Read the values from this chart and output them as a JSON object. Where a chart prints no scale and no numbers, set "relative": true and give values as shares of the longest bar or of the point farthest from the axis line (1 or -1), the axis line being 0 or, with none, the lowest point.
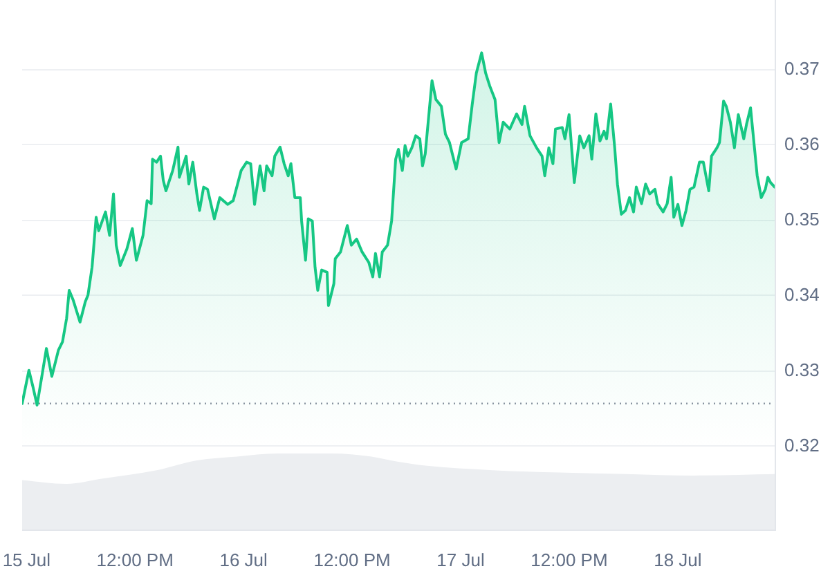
{
  "chart_data": [
    {
      "type": "area",
      "color": "#16c784",
      "marker": "none",
      "line_style": "solid",
      "grid": "y",
      "tick_labels": "y",
      "xlim": [
        "--07-14T23:31",
        "--07-18T10:43"
      ],
      "ylim": [
        0.309,
        0.3792
      ],
      "yticks": [
        0.32,
        0.33,
        0.34,
        0.35,
        0.36,
        0.37
      ],
      "ref_lines": [
        {
          "axis": "y",
          "value": 0.3257,
          "line_style": "dotted",
          "color": "#8b93a1"
        }
      ],
      "x": [
        "--07-14T23:31",
        "--07-15T00:16",
        "--07-15T00:43",
        "--07-15T01:10",
        "--07-15T01:45",
        "--07-15T02:12",
        "--07-15T02:48",
        "--07-15T03:32",
        "--07-15T03:59",
        "--07-15T04:26",
        "--07-15T04:43",
        "--07-15T05:10",
        "--07-15T05:55",
        "--07-15T06:30",
        "--07-15T06:48",
        "--07-15T07:15",
        "--07-15T07:42",
        "--07-15T07:59",
        "--07-15T08:44",
        "--07-15T09:11",
        "--07-15T09:37",
        "--07-15T09:55",
        "--07-15T10:22",
        "--07-15T11:06",
        "--07-15T11:42",
        "--07-15T12:09",
        "--07-15T12:53",
        "--07-15T13:20",
        "--07-15T13:47",
        "--07-15T13:56",
        "--07-15T14:23",
        "--07-15T14:49",
        "--07-15T15:07",
        "--07-15T15:25",
        "--07-15T16:10",
        "--07-15T16:45",
        "--07-15T16:54",
        "--07-15T17:39",
        "--07-15T17:57",
        "--07-15T18:23",
        "--07-15T18:50",
        "--07-15T19:08",
        "--07-15T19:35",
        "--07-15T20:01",
        "--07-15T20:46",
        "--07-15T21:22",
        "--07-15T22:15",
        "--07-15T22:51",
        "--07-15T23:44",
        "--07-16T00:20",
        "--07-16T00:47",
        "--07-16T01:13",
        "--07-16T01:49",
        "--07-16T02:16",
        "--07-16T02:33",
        "--07-16T03:09",
        "--07-16T03:27",
        "--07-16T04:02",
        "--07-16T04:29",
        "--07-16T04:56",
        "--07-16T05:14",
        "--07-16T05:40",
        "--07-16T06:16",
        "--07-16T06:25",
        "--07-16T06:51",
        "--07-16T07:09",
        "--07-16T07:36",
        "--07-16T07:54",
        "--07-16T08:12",
        "--07-16T08:38",
        "--07-16T09:14",
        "--07-16T09:23",
        "--07-16T09:59",
        "--07-16T10:08",
        "--07-16T10:43",
        "--07-16T11:28",
        "--07-16T11:55",
        "--07-16T12:30",
        "--07-16T13:06",
        "--07-16T13:51",
        "--07-16T14:17",
        "--07-16T14:35",
        "--07-16T15:02",
        "--07-16T15:20",
        "--07-16T15:55",
        "--07-16T16:22",
        "--07-16T16:49",
        "--07-16T17:07",
        "--07-16T17:33",
        "--07-16T17:51",
        "--07-16T18:09",
        "--07-16T18:36",
        "--07-16T19:02",
        "--07-16T19:29",
        "--07-16T19:47",
        "--07-16T20:05",
        "--07-16T20:50",
        "--07-16T21:16",
        "--07-16T21:52",
        "--07-16T22:19",
        "--07-16T22:46",
        "--07-16T23:30",
        "--07-17T00:06",
        "--07-17T00:50",
        "--07-17T01:17",
        "--07-17T01:44",
        "--07-17T02:19",
        "--07-17T02:46",
        "--07-17T03:13",
        "--07-17T03:48",
        "--07-17T04:15",
        "--07-17T04:42",
        "--07-17T05:26",
        "--07-17T06:11",
        "--07-17T06:47",
        "--07-17T07:04",
        "--07-17T07:40",
        "--07-17T08:24",
        "--07-17T09:00",
        "--07-17T09:18",
        "--07-17T09:45",
        "--07-17T10:12",
        "--07-17T10:29",
        "--07-17T11:14",
        "--07-17T11:32",
        "--07-17T11:59",
        "--07-17T12:34",
        "--07-17T13:10",
        "--07-17T13:37",
        "--07-17T14:12",
        "--07-17T14:30",
        "--07-17T14:57",
        "--07-17T15:24",
        "--07-17T15:51",
        "--07-17T16:08",
        "--07-17T16:35",
        "--07-17T17:02",
        "--07-17T17:20",
        "--07-17T17:46",
        "--07-17T18:13",
        "--07-17T18:40",
        "--07-17T19:07",
        "--07-17T19:25",
        "--07-17T20:00",
        "--07-17T20:27",
        "--07-17T20:54",
        "--07-17T21:29",
        "--07-17T21:47",
        "--07-17T22:23",
        "--07-17T22:50",
        "--07-17T23:16",
        "--07-17T23:34",
        "--07-18T00:01",
        "--07-18T00:28",
        "--07-18T00:55",
        "--07-18T01:21",
        "--07-18T01:48",
        "--07-18T02:24",
        "--07-18T02:50",
        "--07-18T03:26",
        "--07-18T03:44",
        "--07-18T04:20",
        "--07-18T04:37",
        "--07-18T05:04",
        "--07-18T05:22",
        "--07-18T05:49",
        "--07-18T06:16",
        "--07-18T06:42",
        "--07-18T07:18",
        "--07-18T07:36",
        "--07-18T08:03",
        "--07-18T08:29",
        "--07-18T08:47",
        "--07-18T09:14",
        "--07-18T09:41",
        "--07-18T09:58",
        "--07-18T10:16",
        "--07-18T10:43"
      ],
      "values": [
        0.3257,
        0.3301,
        0.3279,
        0.3255,
        0.3297,
        0.333,
        0.3293,
        0.3328,
        0.3339,
        0.337,
        0.3407,
        0.3394,
        0.3365,
        0.3392,
        0.3401,
        0.3438,
        0.3504,
        0.3486,
        0.3511,
        0.348,
        0.3535,
        0.3467,
        0.344,
        0.3462,
        0.3489,
        0.3447,
        0.348,
        0.3526,
        0.3522,
        0.3581,
        0.3577,
        0.3585,
        0.3553,
        0.3539,
        0.3566,
        0.3597,
        0.3557,
        0.3585,
        0.3548,
        0.3577,
        0.3535,
        0.3513,
        0.3544,
        0.3541,
        0.3502,
        0.353,
        0.3521,
        0.3526,
        0.3566,
        0.3577,
        0.3575,
        0.3521,
        0.3572,
        0.3539,
        0.3572,
        0.3559,
        0.3585,
        0.3597,
        0.3575,
        0.3559,
        0.3575,
        0.353,
        0.353,
        0.3499,
        0.3447,
        0.3502,
        0.3499,
        0.3438,
        0.3407,
        0.3434,
        0.3431,
        0.3387,
        0.3416,
        0.3449,
        0.3458,
        0.3493,
        0.3467,
        0.3475,
        0.3458,
        0.3444,
        0.3425,
        0.3456,
        0.3425,
        0.3458,
        0.3467,
        0.3499,
        0.3581,
        0.3594,
        0.3566,
        0.3599,
        0.3585,
        0.3596,
        0.3612,
        0.3608,
        0.3572,
        0.3588,
        0.3685,
        0.366,
        0.3651,
        0.3614,
        0.3603,
        0.3568,
        0.3603,
        0.3608,
        0.3654,
        0.3695,
        0.3722,
        0.3695,
        0.3678,
        0.366,
        0.3603,
        0.363,
        0.3621,
        0.3641,
        0.3627,
        0.3651,
        0.3612,
        0.3596,
        0.3585,
        0.3559,
        0.3596,
        0.3575,
        0.3621,
        0.3623,
        0.3608,
        0.364,
        0.355,
        0.3612,
        0.3596,
        0.3612,
        0.3581,
        0.3641,
        0.3605,
        0.3618,
        0.3608,
        0.3654,
        0.3596,
        0.3548,
        0.3508,
        0.3513,
        0.353,
        0.3511,
        0.3544,
        0.3522,
        0.3548,
        0.3535,
        0.3541,
        0.3522,
        0.3511,
        0.3522,
        0.3557,
        0.3504,
        0.3521,
        0.3493,
        0.3513,
        0.3541,
        0.3544,
        0.3577,
        0.3577,
        0.3539,
        0.3585,
        0.3596,
        0.3603,
        0.3658,
        0.3651,
        0.363,
        0.3596,
        0.364,
        0.3608,
        0.3627,
        0.3649,
        0.3596,
        0.3559,
        0.353,
        0.3541,
        0.3557,
        0.355,
        0.3544
      ]
    },
    {
      "type": "area",
      "relative": true,
      "color": "#eceef1",
      "marker": "none",
      "tick_labels": "x",
      "xlim": [
        "--07-14T23:31",
        "--07-18T10:43"
      ],
      "xticks": [
        {
          "value": "--07-15T00:00",
          "label": "15 Jul"
        },
        {
          "value": "--07-15T12:00",
          "label": "12:00 PM"
        },
        {
          "value": "--07-16T00:00",
          "label": "16 Jul"
        },
        {
          "value": "--07-16T12:00",
          "label": "12:00 PM"
        },
        {
          "value": "--07-17T00:00",
          "label": "17 Jul"
        },
        {
          "value": "--07-17T12:00",
          "label": "12:00 PM"
        },
        {
          "value": "--07-18T00:00",
          "label": "18 Jul"
        }
      ],
      "x": [
        "--07-14T23:31",
        "--07-15T04:26",
        "--07-15T08:26",
        "--07-15T14:23",
        "--07-15T18:50",
        "--07-15T23:17",
        "--07-16T03:45",
        "--07-16T09:41",
        "--07-16T14:08",
        "--07-16T17:07",
        "--07-16T20:05",
        "--07-17T03:30",
        "--07-17T10:56",
        "--07-17T18:21",
        "--07-18T01:47",
        "--07-18T10:43"
      ],
      "values": [
        0.65,
        0.6,
        0.67,
        0.78,
        0.91,
        0.96,
        1,
        1,
        0.96,
        0.89,
        0.84,
        0.78,
        0.75,
        0.73,
        0.71,
        0.73
      ]
    }
  ]
}
